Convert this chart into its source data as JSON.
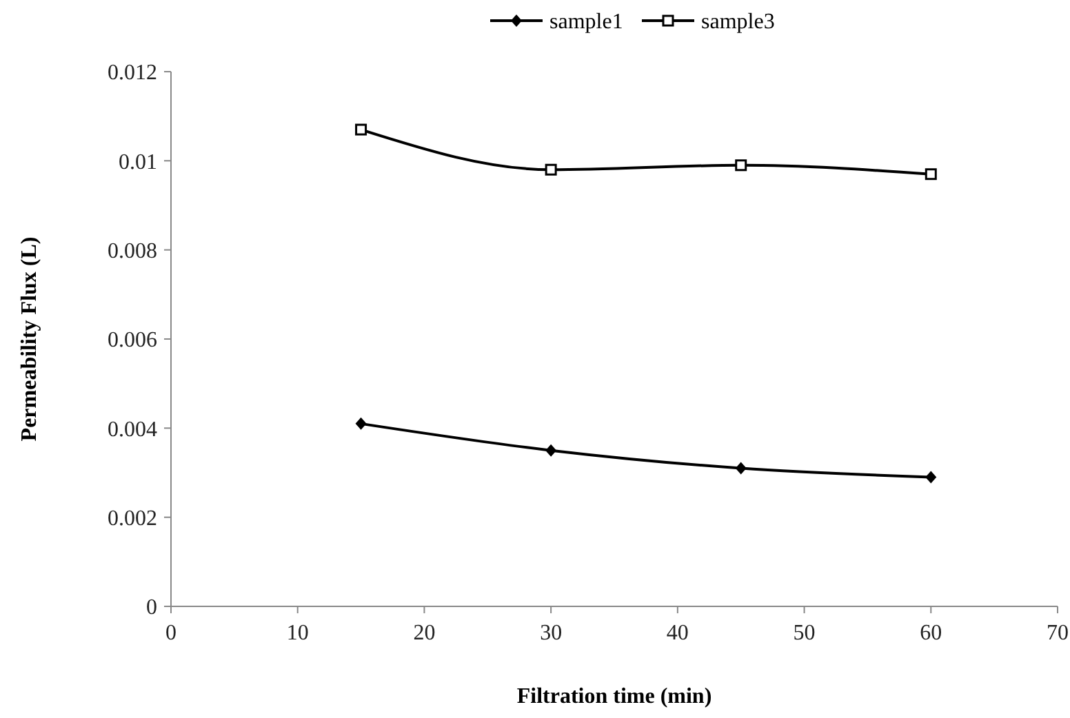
{
  "chart_data": {
    "type": "line",
    "xlabel": "Filtration time (min)",
    "ylabel": "Permeability Flux (L)",
    "x": [
      15,
      30,
      45,
      60
    ],
    "series": [
      {
        "name": "sample1",
        "color": "#000000",
        "marker": "diamond",
        "values": [
          0.0041,
          0.0035,
          0.0031,
          0.0029
        ]
      },
      {
        "name": "sample3",
        "color": "#000000",
        "marker": "square",
        "values": [
          0.0107,
          0.0098,
          0.0099,
          0.0097
        ]
      }
    ],
    "xlim": [
      0,
      70
    ],
    "xticks": [
      0,
      10,
      20,
      30,
      40,
      50,
      60,
      70
    ],
    "ylim": [
      0,
      0.012
    ],
    "yticks": [
      0,
      0.002,
      0.004,
      0.006,
      0.008,
      0.01,
      0.012
    ],
    "grid": false,
    "legend": "top",
    "line_style": "solid"
  }
}
